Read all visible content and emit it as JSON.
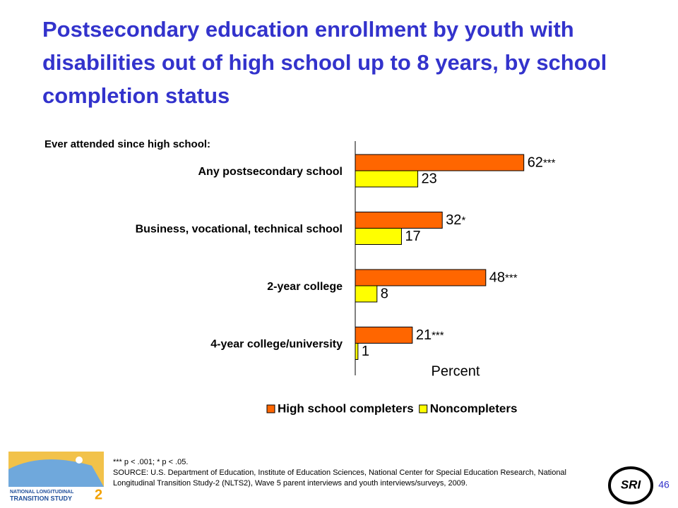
{
  "chart_data": {
    "type": "bar",
    "orientation": "horizontal",
    "title": "Postsecondary education enrollment by youth with disabilities out of high school up to 8 years, by school completion status",
    "subtitle": "Ever attended since high school:",
    "x_label": "Percent",
    "categories": [
      "Any postsecondary school",
      "Business, vocational, technical school",
      "2-year college",
      "4-year college/university"
    ],
    "series": [
      {
        "name": "High school completers",
        "color": "#ff6600",
        "values": [
          62,
          32,
          48,
          21
        ],
        "significance": [
          "***",
          "*",
          "***",
          "***"
        ]
      },
      {
        "name": "Noncompleters",
        "color": "#ffff00",
        "values": [
          23,
          17,
          8,
          1
        ]
      }
    ]
  },
  "footnote": "*** p < .001; * p < .05.",
  "source": "SOURCE: U.S. Department of Education, Institute of Education Sciences, National Center for Special Education Research, National Longitudinal Transition Study-2 (NLTS2), Wave 5 parent interviews and youth interviews/surveys, 2009.",
  "page_number": "46",
  "logos": {
    "nlts_line1": "NATIONAL LONGITUDINAL",
    "nlts_line2": "TRANSITION STUDY",
    "nlts_number": "2",
    "sri": "SRI"
  }
}
